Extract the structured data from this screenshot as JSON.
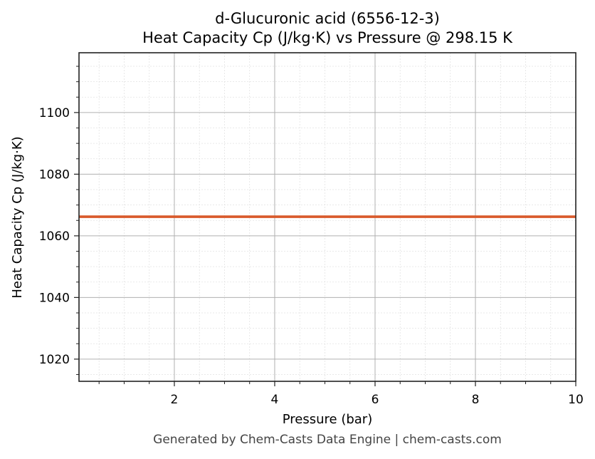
{
  "chart": {
    "title_line1": "d-Glucuronic acid (6556-12-3)",
    "title_line2": "Heat Capacity Cp (J/kg·K) vs Pressure @ 298.15 K",
    "footer": "Generated by Chem-Casts Data Engine | chem-casts.com",
    "line_color": "#d95a2b"
  },
  "chart_data": {
    "type": "line",
    "title": "d-Glucuronic acid (6556-12-3) Heat Capacity Cp (J/kg·K) vs Pressure @ 298.15 K",
    "xlabel": "Pressure (bar)",
    "ylabel": "Heat Capacity Cp (J/kg·K)",
    "xlim": [
      0.1,
      10
    ],
    "ylim": [
      1012.8,
      1119.4
    ],
    "xticks": [
      2,
      4,
      6,
      8,
      10
    ],
    "yticks": [
      1020,
      1040,
      1060,
      1080,
      1100
    ],
    "grid": true,
    "minor_grid": true,
    "legend": null,
    "series": [
      {
        "name": "Cp",
        "color": "#d95a2b",
        "x": [
          0.1,
          1,
          2,
          3,
          4,
          5,
          6,
          7,
          8,
          9,
          10
        ],
        "y": [
          1066.2,
          1066.2,
          1066.2,
          1066.2,
          1066.2,
          1066.2,
          1066.2,
          1066.2,
          1066.2,
          1066.2,
          1066.2
        ]
      }
    ]
  }
}
